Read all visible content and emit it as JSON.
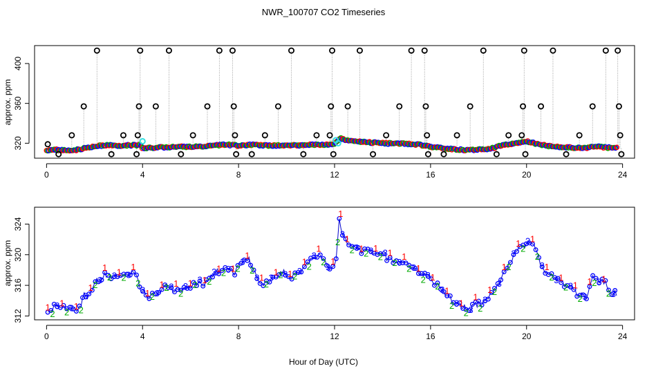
{
  "figure": {
    "title": "NWR_100707  CO2 Timeseries",
    "xlabel": "Hour of Day (UTC)"
  },
  "chart_data": [
    {
      "type": "scatter",
      "ylabel": "approx. ppm",
      "xlim": [
        -0.5,
        24.5
      ],
      "ylim": [
        305,
        418
      ],
      "xticks": [
        0,
        4,
        8,
        12,
        16,
        20,
        24
      ],
      "yticks": [
        320,
        360,
        400
      ],
      "series_colors": {
        "cal": "#000000",
        "s1": "#ff0000",
        "s2": "#00aa00",
        "s3": "#0000ff",
        "flag": "#33e0e0"
      },
      "baseline": [
        [
          0,
          313
        ],
        [
          0.5,
          313.5
        ],
        [
          1,
          313
        ],
        [
          1.3,
          313.5
        ],
        [
          1.6,
          315
        ],
        [
          2,
          317
        ],
        [
          2.5,
          318
        ],
        [
          3,
          317.5
        ],
        [
          3.5,
          318
        ],
        [
          3.9,
          318
        ],
        [
          4.0,
          315
        ],
        [
          4.5,
          315.5
        ],
        [
          5,
          316
        ],
        [
          5.5,
          316.5
        ],
        [
          6,
          316.5
        ],
        [
          6.5,
          317
        ],
        [
          7,
          318
        ],
        [
          7.5,
          318.5
        ],
        [
          8,
          317.5
        ],
        [
          8.5,
          318.5
        ],
        [
          9,
          318
        ],
        [
          9.5,
          317.5
        ],
        [
          10,
          318
        ],
        [
          10.5,
          318
        ],
        [
          11,
          318.5
        ],
        [
          11.5,
          318.5
        ],
        [
          12,
          319
        ],
        [
          12.2,
          325
        ],
        [
          12.5,
          323
        ],
        [
          13,
          321.5
        ],
        [
          14,
          320
        ],
        [
          15,
          319.5
        ],
        [
          15.5,
          318.5
        ],
        [
          16,
          316.5
        ],
        [
          16.5,
          315
        ],
        [
          17,
          314
        ],
        [
          17.5,
          313
        ],
        [
          18,
          313.5
        ],
        [
          18.5,
          314.5
        ],
        [
          19,
          318
        ],
        [
          19.5,
          320
        ],
        [
          20,
          322
        ],
        [
          20.5,
          319
        ],
        [
          21,
          317
        ],
        [
          21.5,
          316
        ],
        [
          22,
          315.5
        ],
        [
          22.5,
          315
        ],
        [
          22.7,
          316.5
        ],
        [
          23,
          316.5
        ],
        [
          23.5,
          315.5
        ],
        [
          23.75,
          315
        ]
      ],
      "cal_points": [
        {
          "x": 0.05,
          "y": 319
        },
        {
          "x": 0.5,
          "y": 309
        },
        {
          "x": 1.05,
          "y": 328
        },
        {
          "x": 1.55,
          "y": 357
        },
        {
          "x": 2.1,
          "y": 413
        },
        {
          "x": 2.7,
          "y": 309
        },
        {
          "x": 3.2,
          "y": 328
        },
        {
          "x": 3.75,
          "y": 309
        },
        {
          "x": 3.8,
          "y": 328
        },
        {
          "x": 3.85,
          "y": 357
        },
        {
          "x": 3.9,
          "y": 413
        },
        {
          "x": 4.55,
          "y": 357
        },
        {
          "x": 5.1,
          "y": 413
        },
        {
          "x": 5.6,
          "y": 309
        },
        {
          "x": 6.1,
          "y": 328
        },
        {
          "x": 6.7,
          "y": 357
        },
        {
          "x": 7.2,
          "y": 413
        },
        {
          "x": 7.75,
          "y": 413
        },
        {
          "x": 7.8,
          "y": 357
        },
        {
          "x": 7.85,
          "y": 328
        },
        {
          "x": 7.9,
          "y": 309
        },
        {
          "x": 8.55,
          "y": 309
        },
        {
          "x": 9.1,
          "y": 328
        },
        {
          "x": 9.65,
          "y": 357
        },
        {
          "x": 10.2,
          "y": 413
        },
        {
          "x": 10.7,
          "y": 309
        },
        {
          "x": 11.25,
          "y": 328
        },
        {
          "x": 11.8,
          "y": 328
        },
        {
          "x": 11.85,
          "y": 357
        },
        {
          "x": 11.9,
          "y": 413
        },
        {
          "x": 11.95,
          "y": 309
        },
        {
          "x": 12.55,
          "y": 357
        },
        {
          "x": 13.05,
          "y": 413
        },
        {
          "x": 13.6,
          "y": 309
        },
        {
          "x": 14.15,
          "y": 328
        },
        {
          "x": 14.7,
          "y": 357
        },
        {
          "x": 15.2,
          "y": 413
        },
        {
          "x": 15.75,
          "y": 413
        },
        {
          "x": 15.8,
          "y": 357
        },
        {
          "x": 15.85,
          "y": 328
        },
        {
          "x": 15.9,
          "y": 309
        },
        {
          "x": 16.55,
          "y": 309
        },
        {
          "x": 17.1,
          "y": 328
        },
        {
          "x": 17.65,
          "y": 357
        },
        {
          "x": 18.2,
          "y": 413
        },
        {
          "x": 18.75,
          "y": 309
        },
        {
          "x": 19.25,
          "y": 328
        },
        {
          "x": 19.8,
          "y": 328
        },
        {
          "x": 19.85,
          "y": 357
        },
        {
          "x": 19.9,
          "y": 413
        },
        {
          "x": 19.95,
          "y": 309
        },
        {
          "x": 20.6,
          "y": 357
        },
        {
          "x": 21.1,
          "y": 413
        },
        {
          "x": 21.65,
          "y": 309
        },
        {
          "x": 22.2,
          "y": 328
        },
        {
          "x": 22.75,
          "y": 357
        },
        {
          "x": 23.3,
          "y": 413
        },
        {
          "x": 23.8,
          "y": 413
        },
        {
          "x": 23.85,
          "y": 357
        },
        {
          "x": 23.9,
          "y": 328
        },
        {
          "x": 23.95,
          "y": 309
        }
      ],
      "flag_points": [
        {
          "x": 4.0,
          "y": 322
        },
        {
          "x": 12.05,
          "y": 323
        },
        {
          "x": 12.15,
          "y": 320
        }
      ]
    },
    {
      "type": "scatter",
      "ylabel": "approx. ppm",
      "xlim": [
        -0.5,
        24.5
      ],
      "ylim": [
        311.5,
        326.2
      ],
      "xticks": [
        0,
        4,
        8,
        12,
        16,
        20,
        24
      ],
      "yticks": [
        312,
        316,
        320,
        324
      ],
      "marker_labels": [
        "1",
        "2",
        "3"
      ],
      "series_colors": {
        "1": "#ff0000",
        "2": "#00aa00",
        "3": "#0000ff",
        "o": "#0000ff"
      },
      "curve": [
        [
          0.05,
          312.7
        ],
        [
          0.3,
          313.2
        ],
        [
          0.6,
          313.1
        ],
        [
          0.9,
          313.3
        ],
        [
          1.2,
          312.9
        ],
        [
          1.4,
          313.2
        ],
        [
          1.55,
          314.7
        ],
        [
          1.8,
          314.5
        ],
        [
          2.0,
          316.5
        ],
        [
          2.2,
          316.7
        ],
        [
          2.4,
          317.5
        ],
        [
          2.7,
          317.1
        ],
        [
          3.0,
          317.2
        ],
        [
          3.3,
          317.5
        ],
        [
          3.6,
          317.6
        ],
        [
          3.8,
          317.2
        ],
        [
          3.95,
          315.3
        ],
        [
          4.2,
          314.5
        ],
        [
          4.5,
          315.0
        ],
        [
          4.8,
          315.5
        ],
        [
          5.0,
          316.0
        ],
        [
          5.3,
          315.2
        ],
        [
          5.6,
          315.7
        ],
        [
          6.0,
          316.0
        ],
        [
          6.3,
          316.3
        ],
        [
          6.5,
          316.1
        ],
        [
          6.8,
          316.9
        ],
        [
          7.0,
          317.8
        ],
        [
          7.3,
          317.9
        ],
        [
          7.6,
          318.4
        ],
        [
          7.8,
          317.4
        ],
        [
          8.0,
          318.6
        ],
        [
          8.2,
          319.2
        ],
        [
          8.4,
          319.6
        ],
        [
          8.6,
          318.4
        ],
        [
          8.75,
          316.8
        ],
        [
          8.9,
          316.0
        ],
        [
          9.1,
          316.3
        ],
        [
          9.3,
          316.7
        ],
        [
          9.6,
          317.3
        ],
        [
          9.9,
          317.7
        ],
        [
          10.2,
          317.1
        ],
        [
          10.5,
          317.4
        ],
        [
          10.7,
          318.6
        ],
        [
          10.9,
          319.3
        ],
        [
          11.1,
          319.2
        ],
        [
          11.3,
          319.8
        ],
        [
          11.5,
          319.6
        ],
        [
          11.7,
          318.4
        ],
        [
          11.9,
          318.1
        ],
        [
          12.05,
          318.5
        ],
        [
          12.2,
          324.6
        ],
        [
          12.35,
          322.5
        ],
        [
          12.6,
          321.3
        ],
        [
          12.9,
          320.7
        ],
        [
          13.2,
          320.4
        ],
        [
          13.5,
          320.3
        ],
        [
          13.8,
          320.1
        ],
        [
          14.2,
          319.6
        ],
        [
          14.6,
          319.1
        ],
        [
          15.0,
          318.7
        ],
        [
          15.3,
          318.1
        ],
        [
          15.6,
          317.6
        ],
        [
          15.9,
          317.0
        ],
        [
          16.2,
          316.3
        ],
        [
          16.5,
          315.3
        ],
        [
          16.8,
          314.4
        ],
        [
          17.1,
          313.7
        ],
        [
          17.4,
          313.2
        ],
        [
          17.6,
          312.8
        ],
        [
          17.8,
          313.3
        ],
        [
          18.0,
          313.6
        ],
        [
          18.3,
          314.0
        ],
        [
          18.6,
          315.1
        ],
        [
          18.9,
          316.4
        ],
        [
          19.1,
          317.9
        ],
        [
          19.3,
          319.0
        ],
        [
          19.6,
          320.5
        ],
        [
          19.9,
          321.0
        ],
        [
          20.1,
          321.8
        ],
        [
          20.3,
          321.2
        ],
        [
          20.5,
          319.4
        ],
        [
          20.7,
          318.0
        ],
        [
          21.0,
          317.2
        ],
        [
          21.3,
          316.8
        ],
        [
          21.6,
          316.0
        ],
        [
          21.9,
          315.4
        ],
        [
          22.2,
          314.7
        ],
        [
          22.5,
          314.6
        ],
        [
          22.75,
          316.9
        ],
        [
          23.0,
          316.7
        ],
        [
          23.3,
          316.4
        ],
        [
          23.5,
          315.2
        ],
        [
          23.75,
          314.9
        ]
      ],
      "spikes": [
        {
          "x": 12.25,
          "y": 325.3
        }
      ]
    }
  ]
}
